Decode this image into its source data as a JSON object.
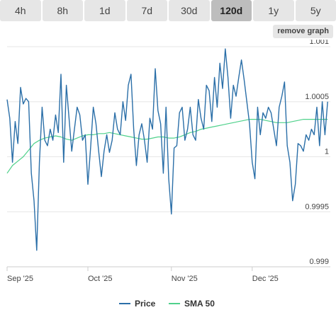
{
  "tabs": [
    {
      "label": "4h",
      "active": false
    },
    {
      "label": "8h",
      "active": false
    },
    {
      "label": "1d",
      "active": false
    },
    {
      "label": "7d",
      "active": false
    },
    {
      "label": "30d",
      "active": false
    },
    {
      "label": "120d",
      "active": true
    },
    {
      "label": "1y",
      "active": false
    },
    {
      "label": "5y",
      "active": false
    }
  ],
  "remove_graph_label": "remove graph",
  "colors": {
    "price": "#2b6fa8",
    "sma": "#4fd18b",
    "grid": "#e6e6e6",
    "axis": "#cccccc"
  },
  "chart_data": {
    "type": "line",
    "title": "",
    "xlabel": "",
    "ylabel": "",
    "ylim": [
      0.999,
      1.001
    ],
    "xlim": [
      0,
      120
    ],
    "y_ticks": [
      {
        "value": 1.001,
        "label": "1.001"
      },
      {
        "value": 1.0005,
        "label": "1.0005"
      },
      {
        "value": 1,
        "label": "1"
      },
      {
        "value": 0.9995,
        "label": "0.9995"
      },
      {
        "value": 0.999,
        "label": "0.999"
      }
    ],
    "x_ticks": [
      {
        "value": 0,
        "label": "Sep '25"
      },
      {
        "value": 30,
        "label": "Oct '25"
      },
      {
        "value": 61,
        "label": "Nov '25"
      },
      {
        "value": 91,
        "label": "Dec '25"
      }
    ],
    "grid": true,
    "legend_position": "bottom",
    "series": [
      {
        "name": "Price",
        "color": "#2b6fa8",
        "x": [
          0,
          1,
          2,
          3,
          4,
          5,
          6,
          7,
          8,
          9,
          10,
          11,
          12,
          13,
          14,
          15,
          16,
          17,
          18,
          19,
          20,
          21,
          22,
          23,
          24,
          25,
          26,
          27,
          28,
          29,
          30,
          31,
          32,
          33,
          34,
          35,
          36,
          37,
          38,
          39,
          40,
          41,
          42,
          43,
          44,
          45,
          46,
          47,
          48,
          49,
          50,
          51,
          52,
          53,
          54,
          55,
          56,
          57,
          58,
          59,
          60,
          61,
          62,
          63,
          64,
          65,
          66,
          67,
          68,
          69,
          70,
          71,
          72,
          73,
          74,
          75,
          76,
          77,
          78,
          79,
          80,
          81,
          82,
          83,
          84,
          85,
          86,
          87,
          88,
          89,
          90,
          91,
          92,
          93,
          94,
          95,
          96,
          97,
          98,
          99,
          100,
          101,
          102,
          103,
          104,
          105,
          106,
          107,
          108,
          109,
          110,
          111,
          112,
          113,
          114,
          115,
          116,
          117,
          118,
          119
        ],
        "values": [
          1.00052,
          1.00035,
          0.99995,
          1.00032,
          1.00012,
          1.00063,
          1.00048,
          1.00053,
          1.0005,
          0.99985,
          0.9996,
          0.99915,
          0.99995,
          1.00045,
          1.00015,
          1.0001,
          1.00025,
          1.00015,
          1.00038,
          1.00022,
          1.00075,
          0.99995,
          1.00065,
          1.00035,
          1.00005,
          1.00025,
          1.00045,
          1.00038,
          1.00015,
          1.0002,
          0.99975,
          1.00008,
          1.00045,
          1.0003,
          1.00005,
          0.99982,
          1.00005,
          1.0002,
          1.00004,
          1.00015,
          1.0004,
          1.00025,
          1.0002,
          1.0005,
          1.00033,
          1.00065,
          1.00075,
          1.00025,
          0.99992,
          1.0002,
          1.0003,
          1.00015,
          0.99995,
          1.00035,
          1.00025,
          1.0008,
          1.00042,
          1.0003,
          0.99985,
          1.00045,
          0.9998,
          0.99948,
          1.00008,
          1.0001,
          1.0004,
          1.00045,
          1.00015,
          1.00025,
          1.00045,
          1.0002,
          1.00015,
          1.00052,
          1.00035,
          1.00025,
          1.00065,
          1.0006,
          1.00032,
          1.00072,
          1.00045,
          1.00085,
          1.00062,
          1.00098,
          1.00072,
          1.00035,
          1.00065,
          1.00055,
          1.00072,
          1.00088,
          1.0007,
          1.0005,
          1.0003,
          0.99995,
          0.9998,
          1.00045,
          1.0002,
          1.0004,
          1.00035,
          1.00045,
          1.0004,
          1.00025,
          1.0001,
          1.00045,
          1.00055,
          1.00068,
          1.0001,
          0.99995,
          0.9996,
          0.99975,
          1.00012,
          1.0001,
          1.00005,
          1.0002,
          1.00015,
          1.00025,
          1.0002,
          1.00045,
          1.0001,
          1.0005,
          1.0002,
          1.0005
        ]
      },
      {
        "name": "SMA 50",
        "color": "#4fd18b",
        "x": [
          0,
          2,
          4,
          6,
          8,
          10,
          12,
          14,
          16,
          18,
          20,
          22,
          24,
          26,
          28,
          30,
          32,
          34,
          36,
          38,
          40,
          42,
          44,
          46,
          48,
          50,
          52,
          54,
          56,
          58,
          60,
          62,
          64,
          66,
          68,
          70,
          72,
          74,
          76,
          78,
          80,
          82,
          84,
          86,
          88,
          90,
          92,
          94,
          96,
          98,
          100,
          102,
          104,
          106,
          108,
          110,
          112,
          114,
          116,
          118,
          119
        ],
        "values": [
          0.99985,
          0.99992,
          0.99996,
          1.0,
          1.00006,
          1.00012,
          1.00015,
          1.00017,
          1.00018,
          1.00019,
          1.00018,
          1.00016,
          1.00015,
          1.00017,
          1.00019,
          1.0002,
          1.0002,
          1.00021,
          1.00021,
          1.00022,
          1.00021,
          1.0002,
          1.00019,
          1.00018,
          1.00017,
          1.00016,
          1.00016,
          1.00017,
          1.00018,
          1.00018,
          1.00017,
          1.00017,
          1.00018,
          1.0002,
          1.00022,
          1.00023,
          1.00025,
          1.00026,
          1.00027,
          1.00028,
          1.00029,
          1.0003,
          1.00031,
          1.00032,
          1.00033,
          1.00034,
          1.00034,
          1.00034,
          1.00033,
          1.00032,
          1.00031,
          1.00031,
          1.00031,
          1.00032,
          1.00033,
          1.00034,
          1.00034,
          1.00034,
          1.00034,
          1.00034,
          1.00034
        ]
      }
    ]
  }
}
